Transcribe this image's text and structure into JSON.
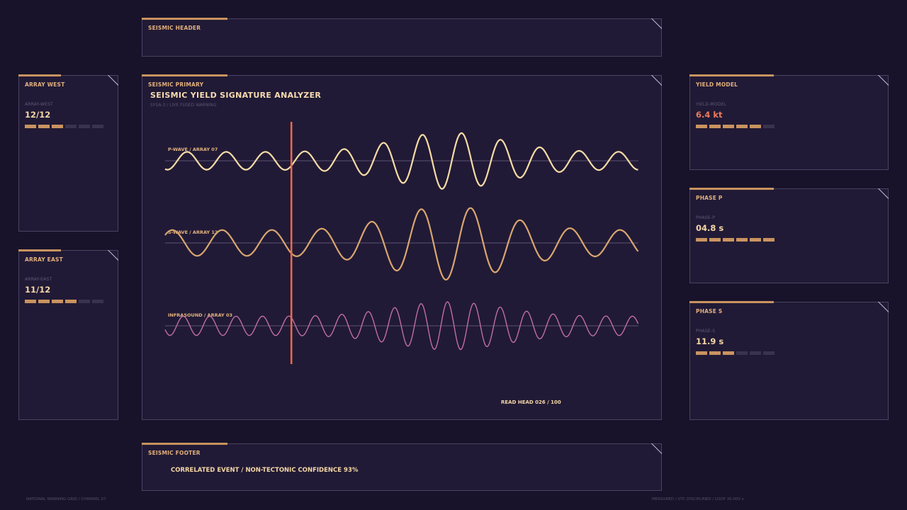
{
  "header": {
    "title": "SEISMIC HEADER"
  },
  "array_west": {
    "title": "ARRAY WEST",
    "label": "ARRAY-WEST",
    "value": "12/12",
    "level": 0.5
  },
  "array_east": {
    "title": "ARRAY EAST",
    "label": "ARRAY-EAST",
    "value": "11/12",
    "level": 0.67
  },
  "primary": {
    "title": "SEISMIC PRIMARY",
    "heading": "SEISMIC YIELD SIGNATURE ANALYZER",
    "subtitle": "SYSA-3 / LIVE FUSED WARNING",
    "read_head": "READ HEAD 026 / 100",
    "read_head_position": 0.26,
    "traces": [
      {
        "name": "P-WAVE / ARRAY 07",
        "color": "#f8dca5"
      },
      {
        "name": "S-WAVE / ARRAY 12",
        "color": "#d9a66f"
      },
      {
        "name": "INFRASOUND / ARRAY 03",
        "color": "#c06fa0"
      }
    ],
    "cursor_color": "#ee6a4a"
  },
  "yield_model": {
    "title": "YIELD MODEL",
    "label": "YIELD-MODEL",
    "value": "6.4 kt",
    "level": 0.83
  },
  "phase_p": {
    "title": "PHASE P",
    "label": "PHASE-P",
    "value": "04.8 s",
    "level": 1.0
  },
  "phase_s": {
    "title": "PHASE S",
    "label": "PHASE-S",
    "value": "11.9 s",
    "level": 0.5
  },
  "footer": {
    "title": "SEISMIC FOOTER",
    "message": "CORRELATED EVENT / NON-TECTONIC CONFIDENCE 93%"
  },
  "bottom_left": "NATIONAL WARNING GRID / CHANNEL 07",
  "bottom_right": "MEASURED / UTC DISCIPLINED / LOOP 30.000 s"
}
